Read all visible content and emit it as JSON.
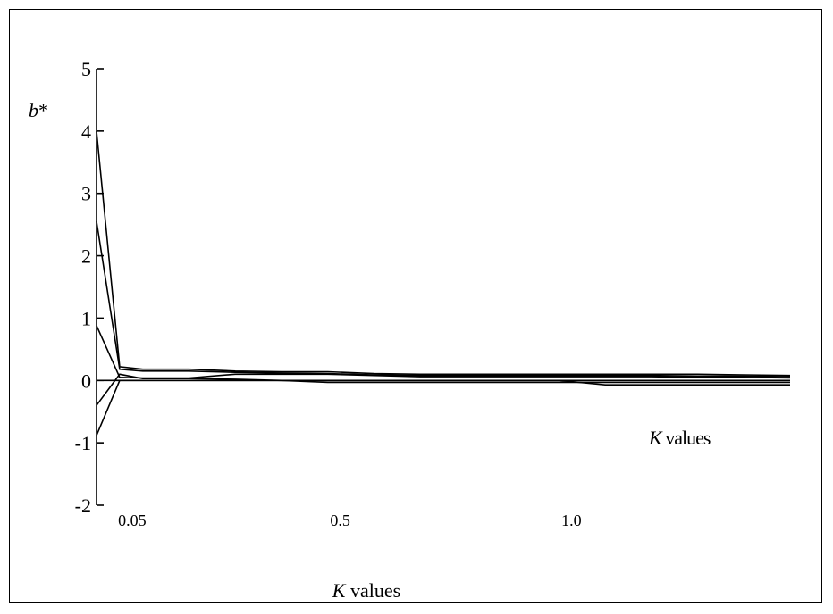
{
  "chart_data": {
    "type": "line",
    "ylabel_main": "b",
    "ylabel_sup": "*",
    "xlabel_main": "K",
    "xlabel_rest": " values",
    "inner_label_main": "K",
    "inner_label_rest": " values",
    "ylim": [
      -2,
      5
    ],
    "y_ticks": [
      5,
      4,
      3,
      2,
      1,
      0,
      -1,
      -2
    ],
    "x_ticks": [
      {
        "value": 0.05,
        "label": "0.05"
      },
      {
        "value": 0.5,
        "label": "0.5"
      },
      {
        "value": 1.0,
        "label": "1.0"
      }
    ],
    "grid": false,
    "legend": "none",
    "x": [
      0,
      0.05,
      0.1,
      0.2,
      0.3,
      0.4,
      0.5,
      0.6,
      0.7,
      0.8,
      0.9,
      1.0,
      1.1,
      1.2,
      1.3,
      1.4,
      1.5
    ],
    "series": [
      {
        "values": [
          4.0,
          0.22,
          0.18,
          0.18,
          0.15,
          0.14,
          0.14,
          0.11,
          0.1,
          0.1,
          0.1,
          0.1,
          0.1,
          0.1,
          0.1,
          0.09,
          0.08
        ]
      },
      {
        "values": [
          2.55,
          0.18,
          0.15,
          0.15,
          0.13,
          0.12,
          0.11,
          0.09,
          0.08,
          0.08,
          0.08,
          0.08,
          0.08,
          0.08,
          0.07,
          0.07,
          0.06
        ]
      },
      {
        "values": [
          0.88,
          0.05,
          0.04,
          0.04,
          0.1,
          0.1,
          0.1,
          0.08,
          0.06,
          0.06,
          0.06,
          0.06,
          0.06,
          0.06,
          0.05,
          0.05,
          0.04
        ]
      },
      {
        "values": [
          -0.4,
          0.1,
          0.03,
          0.03,
          0.02,
          0.0,
          -0.03,
          -0.03,
          -0.03,
          -0.03,
          -0.03,
          -0.03,
          -0.03,
          -0.03,
          -0.03,
          -0.03,
          -0.03
        ]
      },
      {
        "values": [
          -0.88,
          0.0,
          0.0,
          0.0,
          0.0,
          0.0,
          0.0,
          0.0,
          0.0,
          0.0,
          0.0,
          0.0,
          -0.07,
          -0.07,
          -0.07,
          -0.07,
          -0.07
        ]
      }
    ]
  }
}
